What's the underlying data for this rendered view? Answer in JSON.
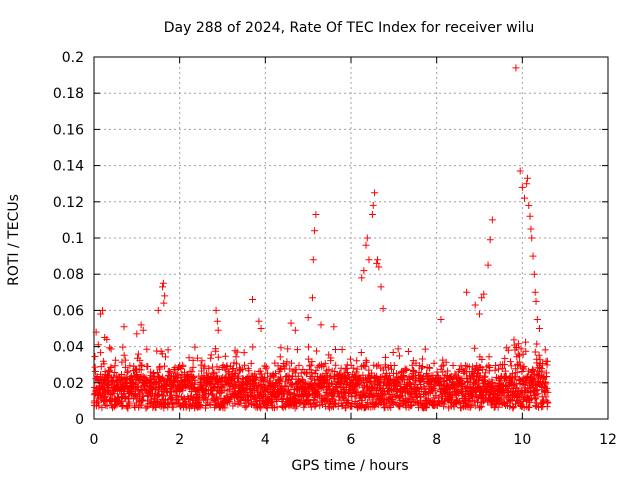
{
  "chart_data": {
    "type": "scatter",
    "title": "Day 288 of 2024, Rate Of TEC Index for receiver wilu",
    "xlabel": "GPS time / hours",
    "ylabel": "ROTI / TECUs",
    "xlim": [
      0,
      12
    ],
    "ylim": [
      0,
      0.2
    ],
    "x_ticks": [
      0,
      2,
      4,
      6,
      8,
      10,
      12
    ],
    "x_tick_labels": [
      "0",
      "2",
      "4",
      "6",
      "8",
      "10",
      "12"
    ],
    "y_ticks": [
      0,
      0.02,
      0.04,
      0.06,
      0.08,
      0.1,
      0.12,
      0.14,
      0.16,
      0.18,
      0.2
    ],
    "y_tick_labels": [
      "0",
      "0.02",
      "0.04",
      "0.06",
      "0.08",
      "0.1",
      "0.12",
      "0.14",
      "0.16",
      "0.18",
      "0.2"
    ],
    "grid": true,
    "marker": "+",
    "color": "#ff0000",
    "data_x_range": [
      0,
      10.6
    ],
    "series": [
      {
        "name": "ROTI",
        "points": [
          [
            0.05,
            0.048
          ],
          [
            0.1,
            0.041
          ],
          [
            0.15,
            0.058
          ],
          [
            0.2,
            0.06
          ],
          [
            0.25,
            0.045
          ],
          [
            0.3,
            0.044
          ],
          [
            0.7,
            0.051
          ],
          [
            1.0,
            0.047
          ],
          [
            1.1,
            0.052
          ],
          [
            1.15,
            0.049
          ],
          [
            1.5,
            0.06
          ],
          [
            1.6,
            0.073
          ],
          [
            1.62,
            0.075
          ],
          [
            1.65,
            0.068
          ],
          [
            1.63,
            0.064
          ],
          [
            2.85,
            0.06
          ],
          [
            2.88,
            0.054
          ],
          [
            2.9,
            0.049
          ],
          [
            3.7,
            0.066
          ],
          [
            3.85,
            0.054
          ],
          [
            3.9,
            0.05
          ],
          [
            4.6,
            0.053
          ],
          [
            4.7,
            0.049
          ],
          [
            5.0,
            0.056
          ],
          [
            5.1,
            0.067
          ],
          [
            5.12,
            0.088
          ],
          [
            5.15,
            0.104
          ],
          [
            5.18,
            0.113
          ],
          [
            5.3,
            0.052
          ],
          [
            5.6,
            0.051
          ],
          [
            6.25,
            0.078
          ],
          [
            6.3,
            0.082
          ],
          [
            6.35,
            0.096
          ],
          [
            6.38,
            0.1
          ],
          [
            6.42,
            0.088
          ],
          [
            6.5,
            0.113
          ],
          [
            6.52,
            0.118
          ],
          [
            6.55,
            0.125
          ],
          [
            6.6,
            0.086
          ],
          [
            6.62,
            0.088
          ],
          [
            6.65,
            0.084
          ],
          [
            6.7,
            0.073
          ],
          [
            6.75,
            0.061
          ],
          [
            8.1,
            0.055
          ],
          [
            8.7,
            0.07
          ],
          [
            8.9,
            0.063
          ],
          [
            9.0,
            0.058
          ],
          [
            9.05,
            0.067
          ],
          [
            9.1,
            0.069
          ],
          [
            9.2,
            0.085
          ],
          [
            9.25,
            0.099
          ],
          [
            9.3,
            0.11
          ],
          [
            9.85,
            0.194
          ],
          [
            9.95,
            0.137
          ],
          [
            10.0,
            0.128
          ],
          [
            10.05,
            0.122
          ],
          [
            10.1,
            0.13
          ],
          [
            10.12,
            0.133
          ],
          [
            10.15,
            0.118
          ],
          [
            10.18,
            0.112
          ],
          [
            10.2,
            0.105
          ],
          [
            10.22,
            0.1
          ],
          [
            10.25,
            0.09
          ],
          [
            10.28,
            0.08
          ],
          [
            10.3,
            0.07
          ],
          [
            10.32,
            0.065
          ],
          [
            10.35,
            0.055
          ],
          [
            10.4,
            0.05
          ]
        ],
        "dense_band": {
          "description": "continuous dense band of ROTI values across 0 to 10.6 hours",
          "x_range": [
            0,
            10.6
          ],
          "y_typical_range": [
            0.005,
            0.035
          ]
        }
      }
    ]
  }
}
